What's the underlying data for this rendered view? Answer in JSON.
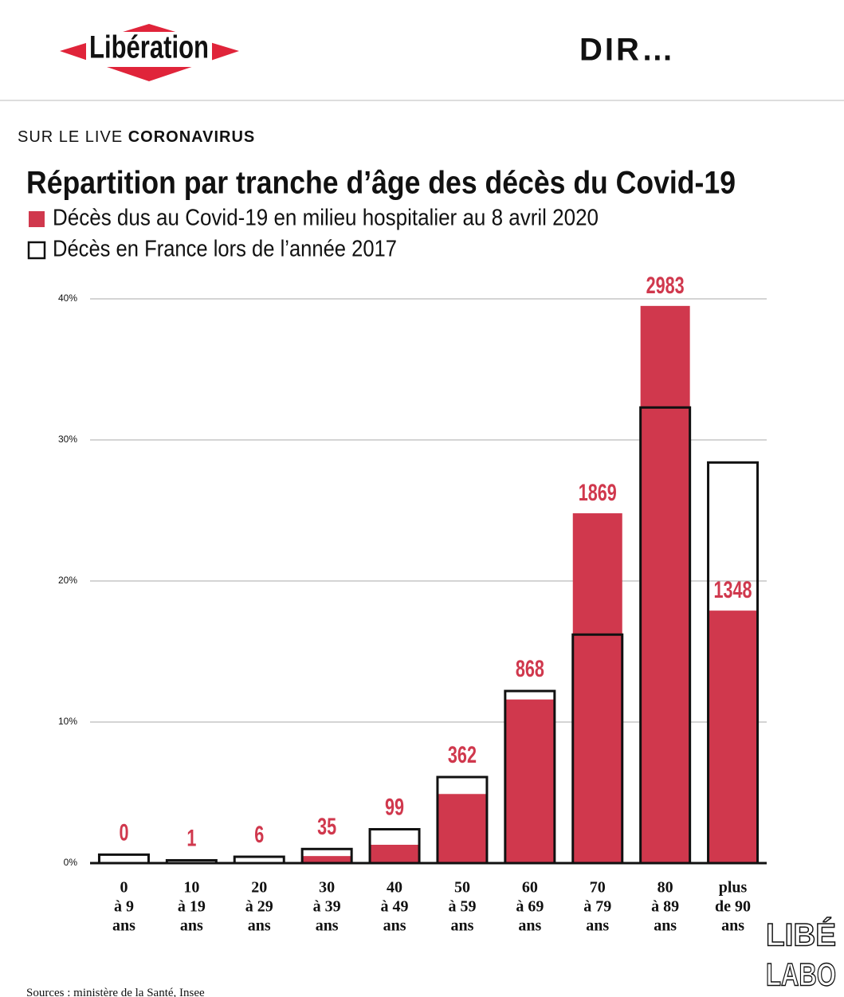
{
  "header": {
    "logo": "Libération",
    "menu": "DIR…",
    "kicker": "SUR LE LIVE",
    "topic": "CORONAVIRUS"
  },
  "chart_data": {
    "type": "overlay-bar",
    "title": "Répartition par tranche d’âge des décès du Covid-19",
    "categories": [
      [
        "0",
        "à 9",
        "ans"
      ],
      [
        "10",
        "à 19",
        "ans"
      ],
      [
        "20",
        "à 29",
        "ans"
      ],
      [
        "30",
        "à 39",
        "ans"
      ],
      [
        "40",
        "à 49",
        "ans"
      ],
      [
        "50",
        "à 59",
        "ans"
      ],
      [
        "60",
        "à 69",
        "ans"
      ],
      [
        "70",
        "à 79",
        "ans"
      ],
      [
        "80",
        "à 89",
        "ans"
      ],
      [
        "plus",
        "de 90",
        "ans"
      ]
    ],
    "series": [
      {
        "name": "Décès dus au Covid-19 en milieu hospitalier au 8 avril 2020",
        "color": "#d0384d",
        "style": "filled",
        "values": [
          0,
          0.01,
          0.08,
          0.5,
          1.3,
          4.9,
          11.6,
          24.8,
          39.5,
          17.9
        ],
        "labels": [
          0,
          1,
          6,
          35,
          99,
          362,
          868,
          1869,
          2983,
          1348
        ]
      },
      {
        "name": "Décès en France lors de l’année 2017",
        "color": "#111111",
        "style": "outline",
        "values": [
          0.6,
          0.2,
          0.45,
          1.0,
          2.4,
          6.1,
          12.2,
          16.2,
          32.3,
          28.4
        ]
      }
    ],
    "ylim": [
      0,
      40
    ],
    "yticks": [
      {
        "value": 0,
        "label": "0%"
      },
      {
        "value": 10,
        "label": "10%"
      },
      {
        "value": 20,
        "label": "20%"
      },
      {
        "value": 30,
        "label": "30%"
      },
      {
        "value": 40,
        "label": "40%"
      }
    ],
    "grid": true,
    "source": "Sources : ministère de la Santé, Insee"
  },
  "footer": {
    "brand": [
      "LIBÉ",
      "LABO"
    ]
  }
}
